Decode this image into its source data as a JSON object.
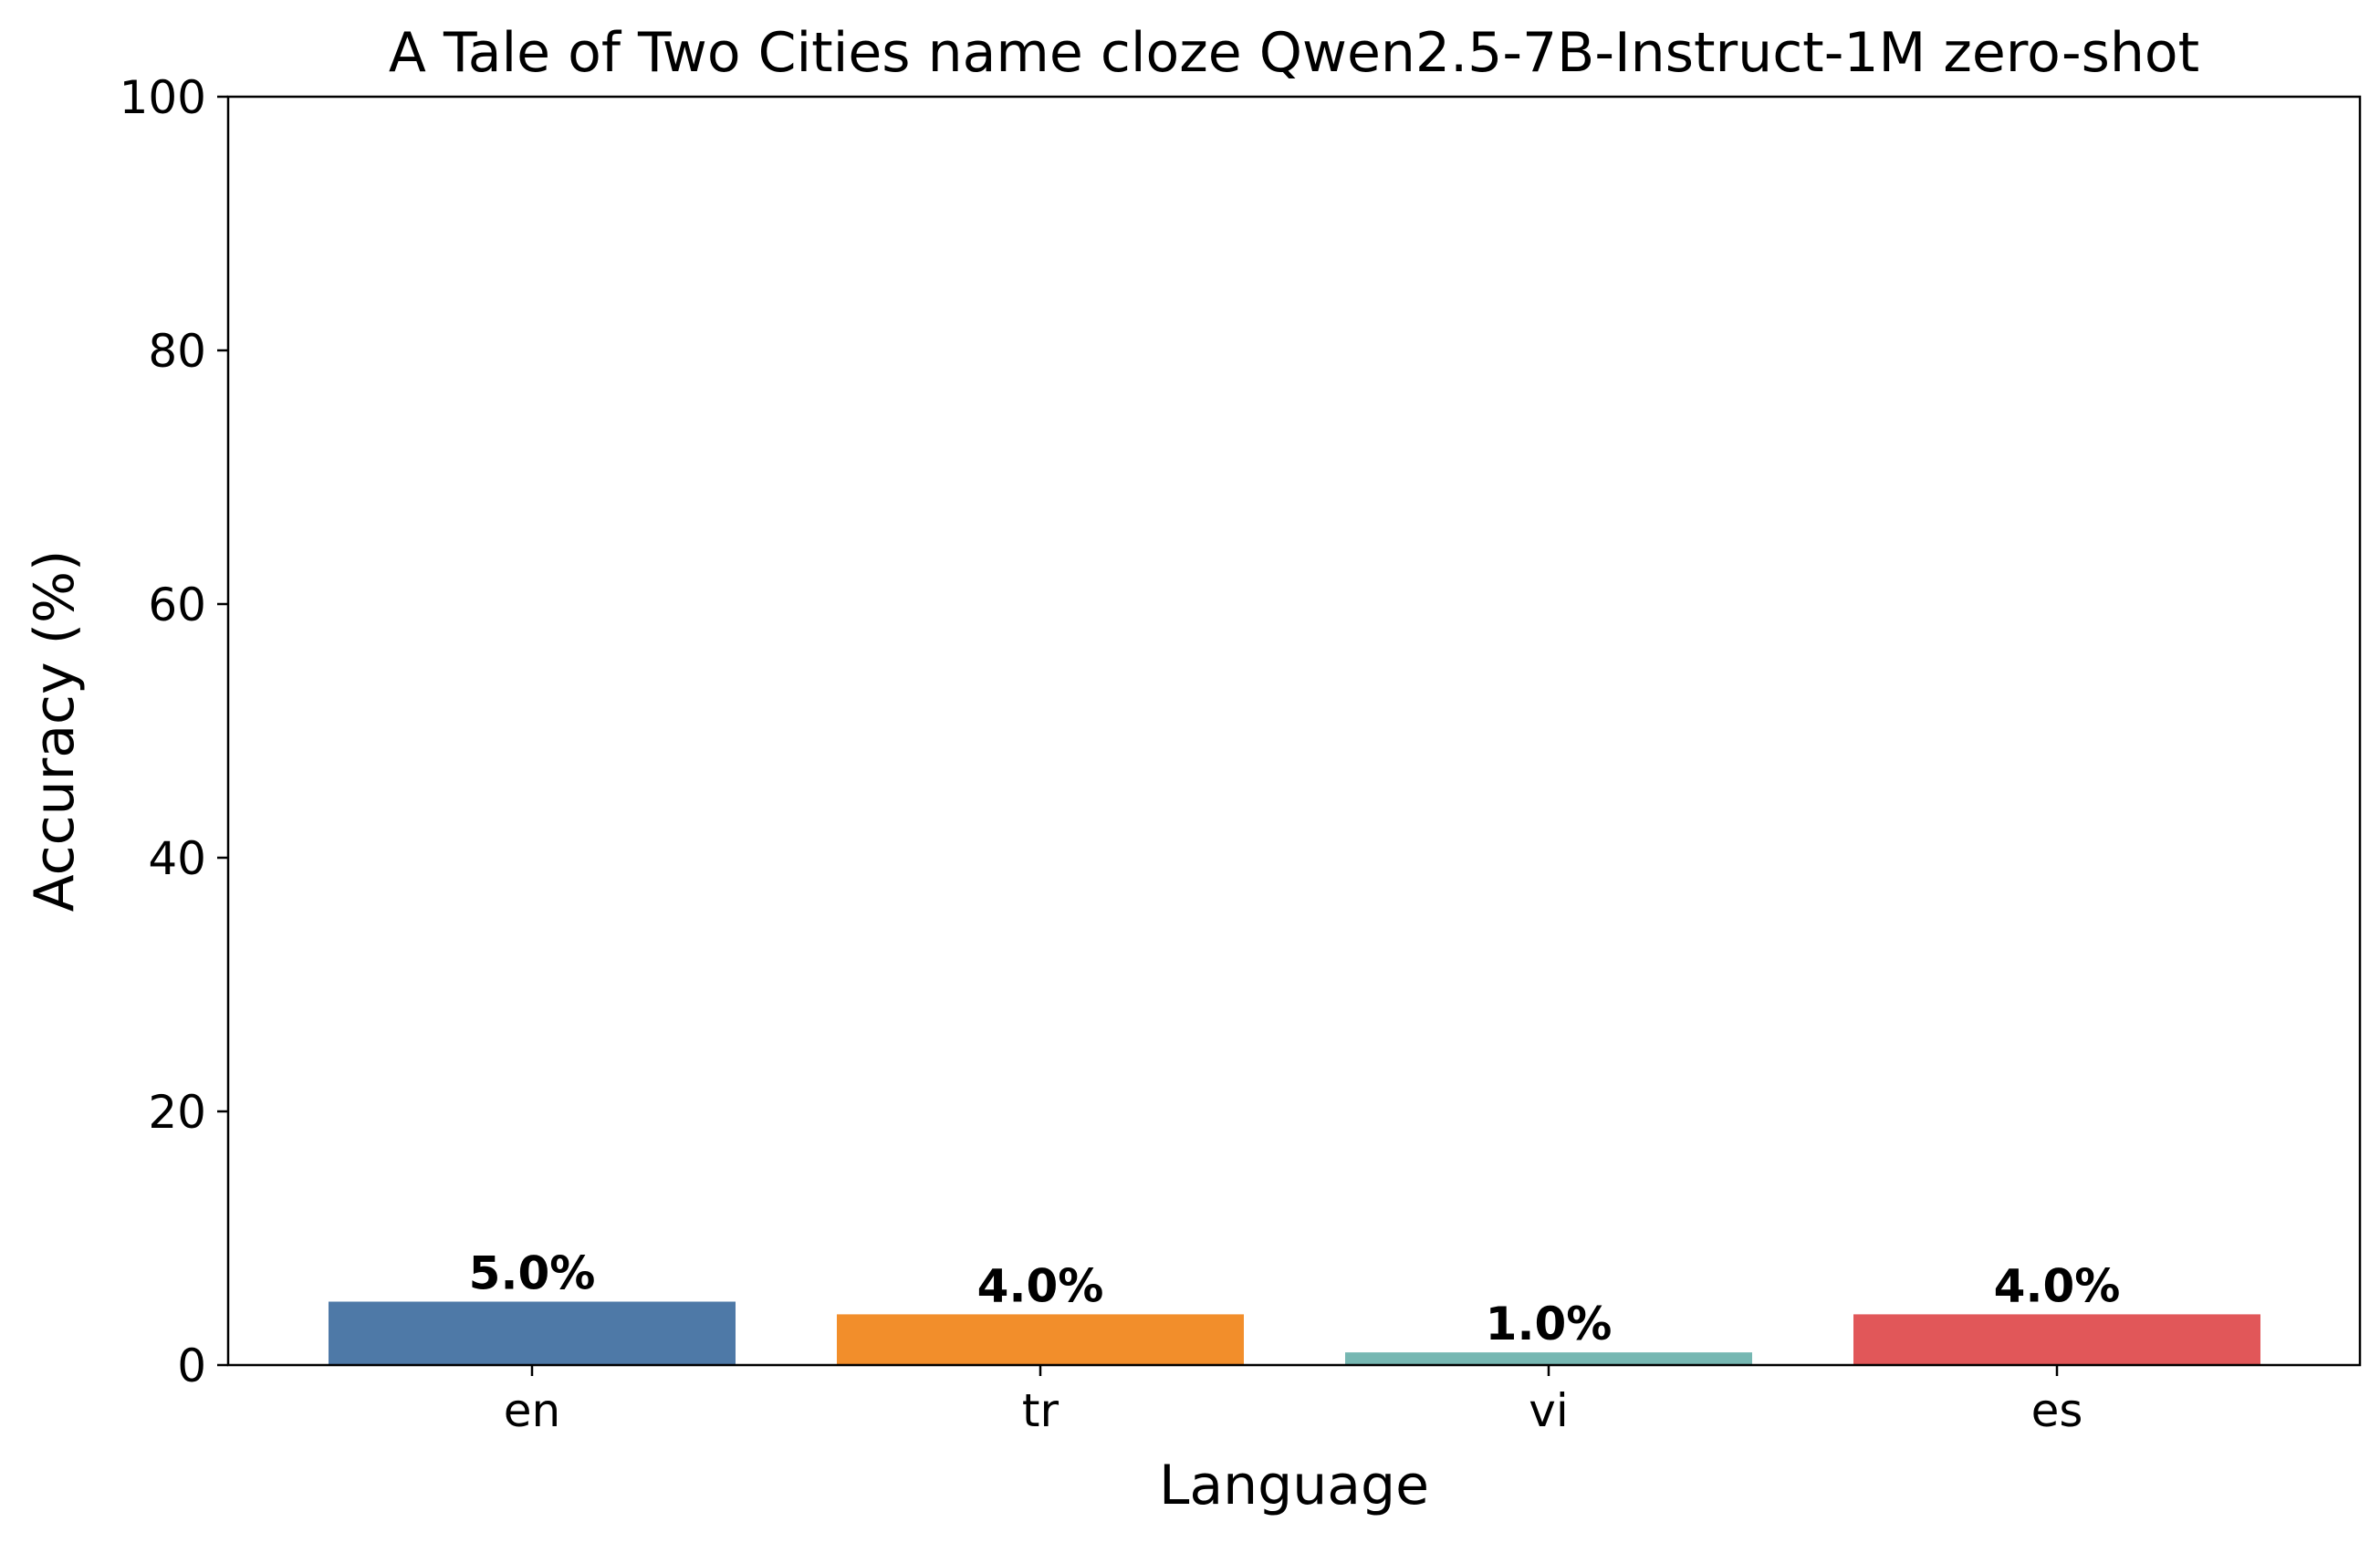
{
  "chart_data": {
    "type": "bar",
    "title": "A Tale of Two Cities name cloze Qwen2.5-7B-Instruct-1M zero-shot",
    "xlabel": "Language",
    "ylabel": "Accuracy (%)",
    "categories": [
      "en",
      "tr",
      "vi",
      "es"
    ],
    "values": [
      5.0,
      4.0,
      1.0,
      4.0
    ],
    "value_labels": [
      "5.0%",
      "4.0%",
      "1.0%",
      "4.0%"
    ],
    "colors": [
      "#4e79a7",
      "#f28e2b",
      "#76b7b2",
      "#e15759"
    ],
    "ylim": [
      0,
      100
    ],
    "yticks": [
      0,
      20,
      40,
      60,
      80,
      100
    ],
    "grid": false,
    "legend": "none"
  }
}
